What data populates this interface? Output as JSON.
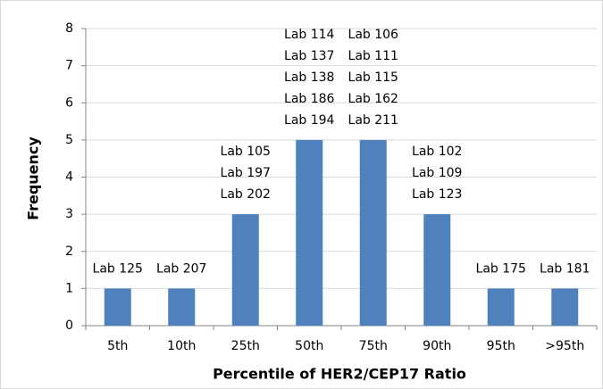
{
  "chart_data": {
    "type": "bar",
    "x_label": "Percentile of HER2/CEP17 Ratio",
    "y_label": "Frequency",
    "categories": [
      "5th",
      "10th",
      "25th",
      "50th",
      "75th",
      "90th",
      "95th",
      ">95th"
    ],
    "values": [
      1,
      1,
      3,
      5,
      5,
      3,
      1,
      1
    ],
    "bar_labels": [
      [
        "Lab 125"
      ],
      [
        "Lab 207"
      ],
      [
        "Lab 105",
        "Lab 197",
        "Lab 202"
      ],
      [
        "Lab 114",
        "Lab 137",
        "Lab 138",
        "Lab 186",
        "Lab 194"
      ],
      [
        "Lab 106",
        "Lab 111",
        "Lab 115",
        "Lab 162",
        "Lab 211"
      ],
      [
        "Lab 102",
        "Lab 109",
        "Lab 123"
      ],
      [
        "Lab 175"
      ],
      [
        "Lab 181"
      ]
    ],
    "color": "#4f81bd",
    "ylim": [
      0,
      8
    ],
    "yticks": [
      0,
      1,
      2,
      3,
      4,
      5,
      6,
      7,
      8
    ],
    "grid": true
  }
}
